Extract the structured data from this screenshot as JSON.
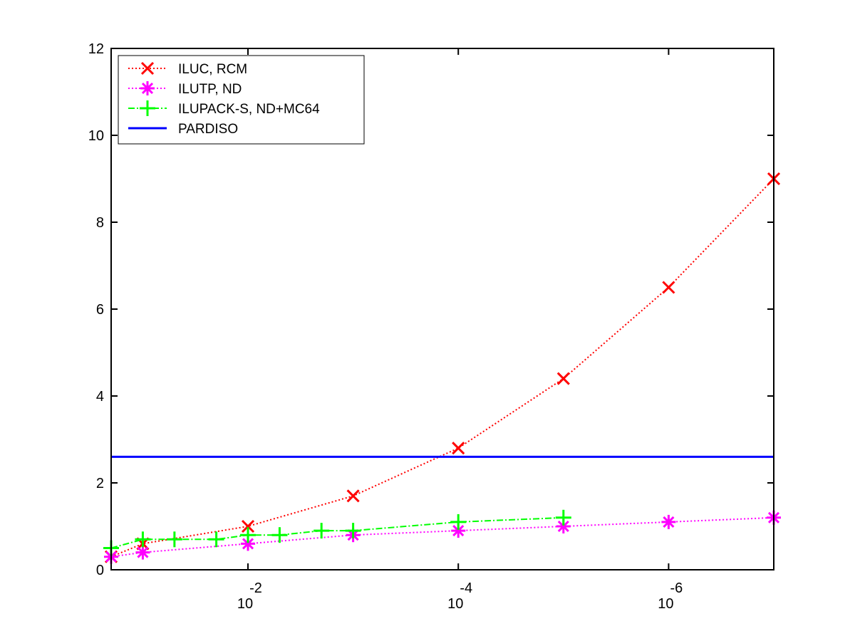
{
  "chart_data": {
    "type": "line",
    "title": "",
    "xlabel": "",
    "ylabel": "",
    "x_scale": "log",
    "x_reversed": true,
    "xlim": [
      0.2,
      1e-07
    ],
    "ylim": [
      0,
      12
    ],
    "grid": false,
    "legend_position": "top-left",
    "y_ticks": [
      {
        "value": 0,
        "label": "0"
      },
      {
        "value": 2,
        "label": "2"
      },
      {
        "value": 4,
        "label": "4"
      },
      {
        "value": 6,
        "label": "6"
      },
      {
        "value": 8,
        "label": "8"
      },
      {
        "value": 10,
        "label": "10"
      },
      {
        "value": 12,
        "label": "12"
      }
    ],
    "x_ticks": [
      {
        "value": 0.01,
        "base": "10",
        "exponent": "-2"
      },
      {
        "value": 0.0001,
        "base": "10",
        "exponent": "-4"
      },
      {
        "value": 1e-06,
        "base": "10",
        "exponent": "-6"
      }
    ],
    "series": [
      {
        "name": "ILUC, RCM",
        "color": "#ff0000",
        "marker": "x",
        "line_style": "dotted",
        "x": [
          0.2,
          0.1,
          0.01,
          0.001,
          0.0001,
          1e-05,
          1e-06,
          1e-07
        ],
        "y": [
          0.3,
          0.6,
          1.0,
          1.7,
          2.8,
          4.4,
          6.5,
          9.0
        ]
      },
      {
        "name": "ILUTP,  ND",
        "color": "#ff00ff",
        "marker": "asterisk",
        "line_style": "dotted",
        "x": [
          0.2,
          0.1,
          0.01,
          0.001,
          0.0001,
          1e-05,
          1e-06,
          1e-07
        ],
        "y": [
          0.3,
          0.4,
          0.6,
          0.8,
          0.9,
          1.0,
          1.1,
          1.2
        ]
      },
      {
        "name": "ILUPACK-S, ND+MC64",
        "color": "#00ff00",
        "marker": "plus",
        "line_style": "dashdot",
        "x": [
          0.2,
          0.1,
          0.05,
          0.02,
          0.01,
          0.005,
          0.002,
          0.001,
          0.0001,
          1e-05
        ],
        "y": [
          0.5,
          0.7,
          0.7,
          0.7,
          0.8,
          0.8,
          0.9,
          0.9,
          1.1,
          1.2
        ]
      },
      {
        "name": "PARDISO",
        "color": "#0000ff",
        "marker": "none",
        "line_style": "solid",
        "x": [
          0.2,
          1e-07
        ],
        "y": [
          2.6,
          2.6
        ]
      }
    ]
  }
}
